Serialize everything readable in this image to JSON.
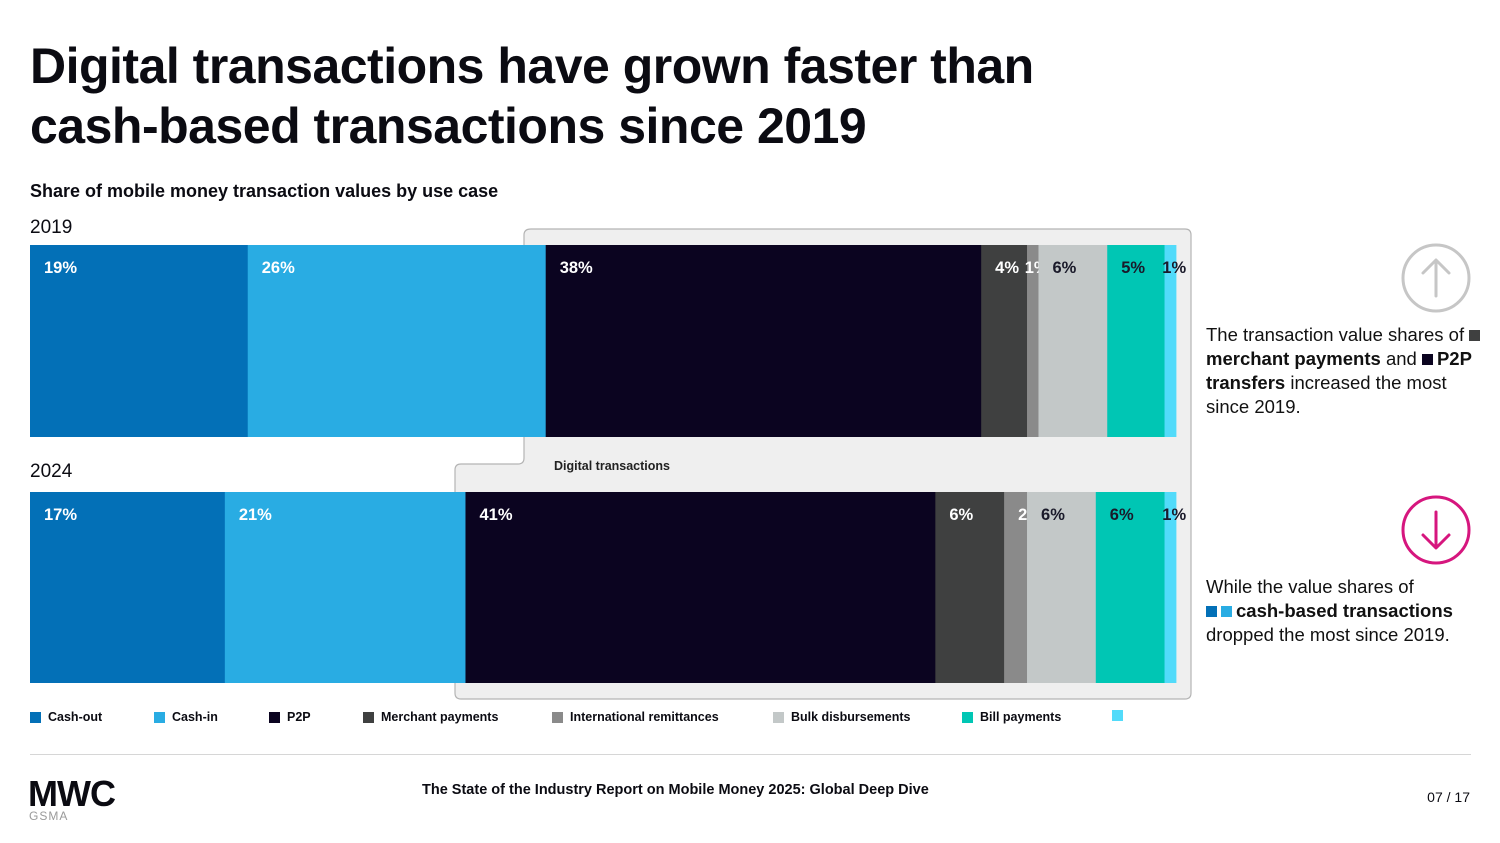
{
  "title": "Digital transactions have grown faster than cash-based transactions since 2019",
  "colors": {
    "cash_out": "#0370b7",
    "cash_in": "#29ace3",
    "p2p": "#0b0420",
    "merchant": "#3f4040",
    "intl_remit": "#8a8a8a",
    "bulk": "#c3c8c8",
    "bill": "#00c6b4",
    "other": "#52dbfa",
    "up_icon": "#c6c6c6",
    "down_icon": "#d6167e"
  },
  "chart_data": {
    "type": "bar",
    "orientation": "horizontal-stacked-100",
    "title": "Share of mobile money transaction values by use case",
    "categories": [
      "2019",
      "2024"
    ],
    "series": [
      {
        "name": "Cash-out",
        "values": [
          19,
          17
        ],
        "labels": [
          "19%",
          "17%"
        ]
      },
      {
        "name": "Cash-in",
        "values": [
          26,
          21
        ],
        "labels": [
          "26%",
          "21%"
        ]
      },
      {
        "name": "P2P",
        "values": [
          38,
          41
        ],
        "labels": [
          "38%",
          "41%"
        ]
      },
      {
        "name": "Merchant payments",
        "values": [
          4,
          6
        ],
        "labels": [
          "4%",
          "6%"
        ]
      },
      {
        "name": "International remittances",
        "values": [
          1,
          2
        ],
        "labels": [
          "1%",
          "2%"
        ]
      },
      {
        "name": "Bulk disbursements",
        "values": [
          6,
          6
        ],
        "labels": [
          "6%",
          "6%"
        ]
      },
      {
        "name": "Bill payments",
        "values": [
          5,
          6
        ],
        "labels": [
          "5%",
          "6%"
        ]
      },
      {
        "name": "",
        "values": [
          1,
          1
        ],
        "labels": [
          "1%",
          "1%"
        ]
      }
    ],
    "annotation": "Digital transactions",
    "legend_position": "bottom"
  },
  "callouts": {
    "up": {
      "lead": "The transaction value shares of",
      "bold1": "merchant payments",
      "mid": "and",
      "bold2": "P2P transfers",
      "tail": "increased the most since 2019."
    },
    "down": {
      "lead": "While the value shares of",
      "bold": "cash-based transactions",
      "tail": "dropped the most since 2019."
    }
  },
  "footer": {
    "logo_text": "MWC",
    "logo_sub": "GSMA",
    "report_title": "The State of the Industry Report on Mobile Money 2025: Global Deep Dive",
    "page": "07 / 17"
  }
}
